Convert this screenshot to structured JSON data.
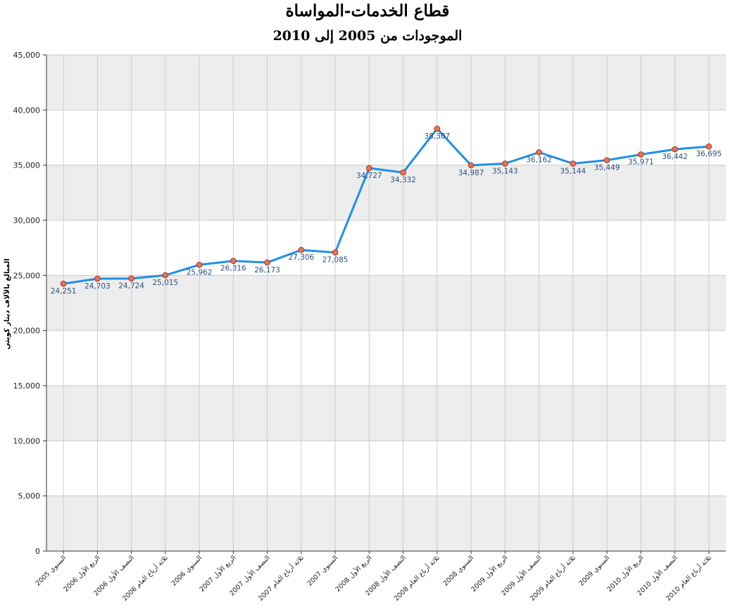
{
  "chart_data": {
    "type": "line",
    "title": "قطاع الخدمات-المواساة",
    "subtitle": "الموجودات من 2005 إلى 2010",
    "ylabel": "المبالغ بالآلاف دينار كويتي",
    "xlabel": "",
    "ylim": [
      0,
      45000
    ],
    "yticks": [
      "0",
      "5,000",
      "10,000",
      "15,000",
      "20,000",
      "25,000",
      "30,000",
      "35,000",
      "40,000",
      "45,000"
    ],
    "grid": "horizontal alternating bands and vertical lines",
    "categories": [
      "السنوي 2005",
      "الربع الأول 2006",
      "النصف الأول 2006",
      "ثلاثة أرباع العام 2006",
      "السنوي 2006",
      "الربع الأول 2007",
      "النصف الأول 2007",
      "ثلاثة أرباع العام 2007",
      "السنوي 2007",
      "الربع الأول 2008",
      "النصف الأول 2008",
      "ثلاثة أرباع العام 2008",
      "السنوي 2008",
      "الربع الأول 2009",
      "النصف الأول 2009",
      "ثلاثة أرباع العام 2009",
      "السنوي 2009",
      "الربع الأول 2010",
      "النصف الأول 2010",
      "ثلاثة أرباع العام 2010"
    ],
    "values": [
      24251,
      24703,
      24724,
      25015,
      25962,
      26316,
      26173,
      27306,
      27085,
      34727,
      34332,
      38307,
      34987,
      35143,
      36162,
      35144,
      35449,
      35971,
      36442,
      36695
    ],
    "data_labels": [
      "24,251",
      "24,703",
      "24,724",
      "25,015",
      "25,962",
      "26,316",
      "26,173",
      "27,306",
      "27,085",
      "34,727",
      "34,332",
      "38,307",
      "34,987",
      "35,143",
      "36,162",
      "35,144",
      "35,449",
      "35,971",
      "36,442",
      "36,695"
    ],
    "colors": {
      "line": "#1e90e6",
      "marker_fill": "#f07050",
      "marker_stroke": "#a03a20",
      "band": "#ededed",
      "grid": "#cccccc",
      "data_label": "#2f4f7f"
    }
  }
}
